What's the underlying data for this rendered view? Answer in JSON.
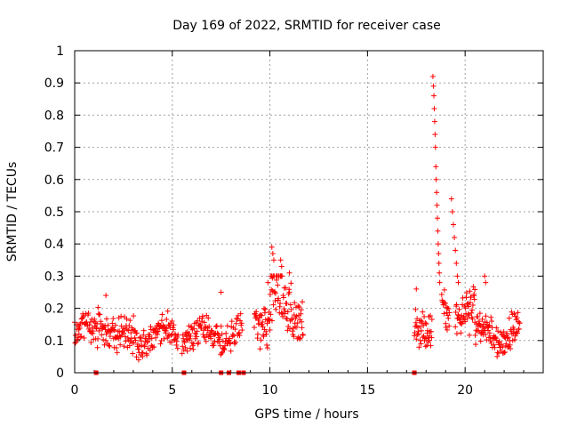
{
  "chart_data": {
    "type": "scatter",
    "title": "Day 169 of 2022, SRMTID for receiver case",
    "xlabel": "GPS time / hours",
    "ylabel": "SRMTID / TECUs",
    "xlim": [
      0,
      24
    ],
    "ylim": [
      0,
      1
    ],
    "xticks": [
      "0",
      "5",
      "10",
      "15",
      "20"
    ],
    "xtick_values": [
      0,
      5,
      10,
      15,
      20
    ],
    "yticks": [
      "0",
      "0.1",
      "0.2",
      "0.3",
      "0.4",
      "0.5",
      "0.6",
      "0.7",
      "0.8",
      "0.9",
      "1"
    ],
    "ytick_values": [
      0,
      0.1,
      0.2,
      0.3,
      0.4,
      0.5,
      0.6,
      0.7,
      0.8,
      0.9,
      1
    ],
    "grid": true,
    "marker": "plus",
    "color": "#ff0000",
    "series": [
      {
        "name": "SRMTID",
        "segments": [
          {
            "start": 0.0,
            "end": 1.2,
            "base": 0.13,
            "spread": 0.04,
            "step": 0.022
          },
          {
            "start": 1.2,
            "end": 2.0,
            "base": 0.15,
            "spread": 0.05,
            "step": 0.022
          },
          {
            "start": 2.0,
            "end": 3.8,
            "base": 0.11,
            "spread": 0.05,
            "step": 0.022
          },
          {
            "start": 3.8,
            "end": 5.3,
            "base": 0.12,
            "spread": 0.04,
            "step": 0.022
          },
          {
            "start": 5.5,
            "end": 7.6,
            "base": 0.12,
            "spread": 0.04,
            "step": 0.022
          },
          {
            "start": 7.6,
            "end": 8.6,
            "base": 0.12,
            "spread": 0.04,
            "step": 0.025
          },
          {
            "start": 9.2,
            "end": 10.0,
            "base": 0.17,
            "spread": 0.06,
            "step": 0.02
          },
          {
            "start": 10.0,
            "end": 10.6,
            "base": 0.24,
            "spread": 0.09,
            "step": 0.018
          },
          {
            "start": 10.6,
            "end": 11.7,
            "base": 0.19,
            "spread": 0.07,
            "step": 0.02
          },
          {
            "start": 17.4,
            "end": 18.3,
            "base": 0.15,
            "spread": 0.05,
            "step": 0.02
          },
          {
            "start": 18.8,
            "end": 19.2,
            "base": 0.18,
            "spread": 0.05,
            "step": 0.02
          },
          {
            "start": 19.5,
            "end": 20.5,
            "base": 0.2,
            "spread": 0.06,
            "step": 0.02
          },
          {
            "start": 20.5,
            "end": 22.8,
            "base": 0.12,
            "spread": 0.05,
            "step": 0.02
          }
        ],
        "peaks": [
          {
            "x": 18.35,
            "y": 0.92
          },
          {
            "x": 18.38,
            "y": 0.89
          },
          {
            "x": 18.4,
            "y": 0.86
          },
          {
            "x": 18.42,
            "y": 0.82
          },
          {
            "x": 18.44,
            "y": 0.78
          },
          {
            "x": 18.46,
            "y": 0.74
          },
          {
            "x": 18.48,
            "y": 0.7
          },
          {
            "x": 18.5,
            "y": 0.64
          },
          {
            "x": 18.52,
            "y": 0.6
          },
          {
            "x": 18.54,
            "y": 0.56
          },
          {
            "x": 18.56,
            "y": 0.52
          },
          {
            "x": 18.58,
            "y": 0.48
          },
          {
            "x": 18.6,
            "y": 0.44
          },
          {
            "x": 18.62,
            "y": 0.4
          },
          {
            "x": 18.64,
            "y": 0.37
          },
          {
            "x": 18.66,
            "y": 0.34
          },
          {
            "x": 18.68,
            "y": 0.31
          },
          {
            "x": 18.7,
            "y": 0.28
          },
          {
            "x": 19.3,
            "y": 0.54
          },
          {
            "x": 19.35,
            "y": 0.5
          },
          {
            "x": 19.4,
            "y": 0.46
          },
          {
            "x": 19.45,
            "y": 0.42
          },
          {
            "x": 19.5,
            "y": 0.38
          },
          {
            "x": 19.55,
            "y": 0.34
          },
          {
            "x": 19.6,
            "y": 0.3
          },
          {
            "x": 19.65,
            "y": 0.28
          },
          {
            "x": 10.1,
            "y": 0.39
          },
          {
            "x": 10.15,
            "y": 0.37
          },
          {
            "x": 10.2,
            "y": 0.35
          },
          {
            "x": 10.55,
            "y": 0.35
          },
          {
            "x": 10.6,
            "y": 0.33
          },
          {
            "x": 11.0,
            "y": 0.31
          },
          {
            "x": 7.5,
            "y": 0.25
          },
          {
            "x": 1.6,
            "y": 0.24
          },
          {
            "x": 9.9,
            "y": 0.28
          },
          {
            "x": 21.0,
            "y": 0.3
          },
          {
            "x": 21.05,
            "y": 0.28
          },
          {
            "x": 17.5,
            "y": 0.26
          }
        ],
        "zero_markers": [
          1.1,
          5.6,
          7.5,
          7.9,
          8.4,
          8.65,
          17.4
        ]
      }
    ]
  }
}
